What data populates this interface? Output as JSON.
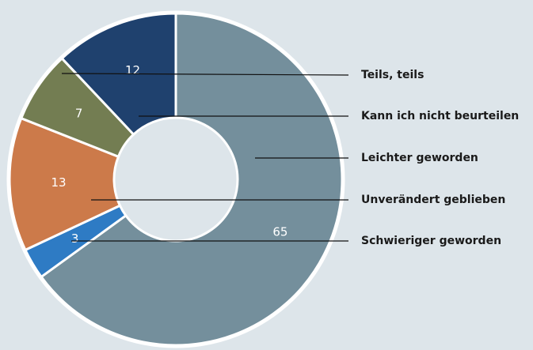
{
  "chart_data": {
    "type": "donut",
    "categories": [
      "Leichter geworden",
      "Schwieriger geworden",
      "Unverändert geblieben",
      "Teils, teils",
      "Kann ich nicht beurteilen"
    ],
    "values": [
      65,
      3,
      13,
      7,
      12
    ],
    "colors": [
      "#748f9c",
      "#2e7bc4",
      "#cc7a4a",
      "#737d52",
      "#1f416e"
    ]
  }
}
